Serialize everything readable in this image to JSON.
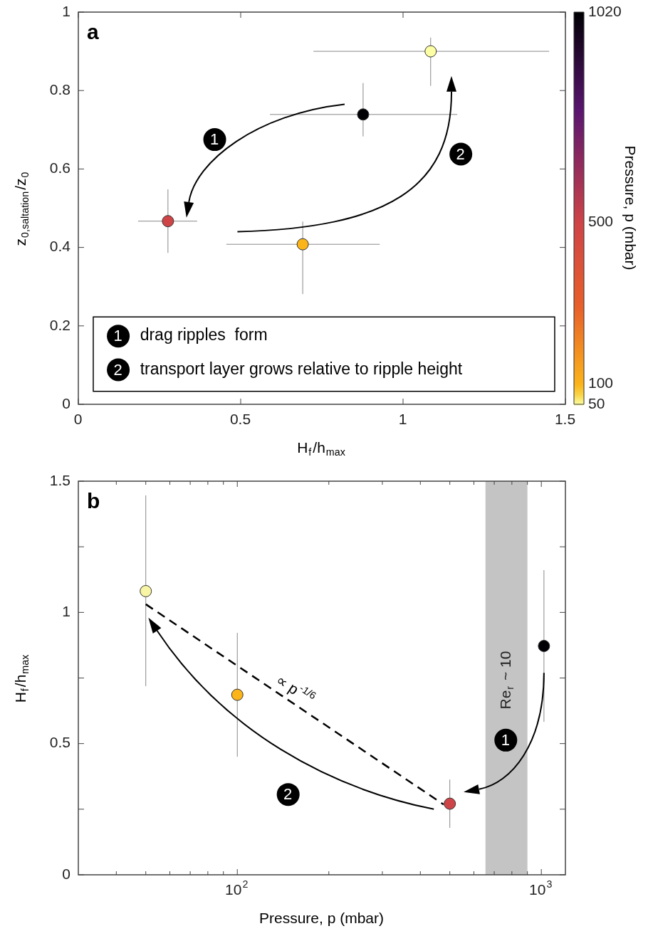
{
  "chart_data": [
    {
      "type": "scatter",
      "title": "a",
      "xlabel": "H$_{f}$/h$_{max}$",
      "ylabel": "z$_{0,saltation}$/z$_{0}$",
      "clabel": "Pressure, p (mbar)",
      "xlim": [
        0,
        1.5
      ],
      "ylim": [
        0,
        1
      ],
      "xticks": [
        0,
        0.5,
        1,
        1.5
      ],
      "yticks": [
        0,
        0.2,
        0.4,
        0.6,
        0.8,
        1
      ],
      "clim": [
        50,
        1020
      ],
      "cticks": [
        50,
        100,
        500,
        1020
      ],
      "marker": "circle",
      "series": [
        {
          "x": [
            0.276,
            0.691,
            0.877,
            1.085
          ],
          "values": [
            0.467,
            0.408,
            0.739,
            0.9
          ],
          "xerrors": [
            [
              0.184,
              0.366
            ],
            [
              0.456,
              0.928
            ],
            [
              0.59,
              1.167
            ],
            [
              0.724,
              1.45
            ]
          ],
          "errors": [
            [
              0.386,
              0.548
            ],
            [
              0.281,
              0.466
            ],
            [
              0.683,
              0.819
            ],
            [
              0.812,
              0.935
            ]
          ],
          "cvalues": [
            500,
            100,
            1020,
            50
          ]
        }
      ],
      "annotations": [
        "1",
        "2",
        "1",
        "drag ripples  form",
        "2",
        "transport layer grows relative to ripple height"
      ]
    },
    {
      "type": "scatter",
      "title": "b",
      "xlabel": "Pressure, p (mbar)",
      "ylabel": "H$_{f}$/h$_{max}$",
      "log": "x",
      "xlim": [
        30,
        1200
      ],
      "ylim": [
        0,
        1.5
      ],
      "xticks": [
        {
          "value": 40,
          "label": null
        },
        {
          "value": 50,
          "label": null
        },
        {
          "value": 60,
          "label": null
        },
        {
          "value": 70,
          "label": null
        },
        {
          "value": 80,
          "label": null
        },
        {
          "value": 90,
          "label": null
        },
        {
          "value": 100,
          "label": "10$^{2}$"
        },
        {
          "value": 200,
          "label": null
        },
        {
          "value": 300,
          "label": null
        },
        {
          "value": 400,
          "label": null
        },
        {
          "value": 500,
          "label": null
        },
        {
          "value": 600,
          "label": null
        },
        {
          "value": 700,
          "label": null
        },
        {
          "value": 800,
          "label": null
        },
        {
          "value": 900,
          "label": null
        },
        {
          "value": 1000,
          "label": "10$^{3}$"
        }
      ],
      "yticks": [
        0,
        {
          "value": 0.25,
          "label": null
        },
        0.5,
        {
          "value": 0.75,
          "label": null
        },
        1,
        {
          "value": 1.25,
          "label": null
        },
        1.5
      ],
      "marker": "circle",
      "bands": [
        {
          "axis": "x",
          "from": 655,
          "to": 900,
          "label": "Re$_{r}$ ~ 10",
          "color": "#c4c4c4"
        }
      ],
      "series": [
        {
          "x": [
            50,
            100,
            500,
            1020
          ],
          "values": [
            1.081,
            0.686,
            0.271,
            0.872
          ],
          "errors": [
            [
              0.719,
              1.446
            ],
            [
              0.45,
              0.922
            ],
            [
              0.179,
              0.363
            ],
            [
              0.583,
              1.161
            ]
          ],
          "colors": [
            "#f8f5a5",
            "#fbb41a",
            "#cf4446",
            "#000004"
          ]
        },
        {
          "type": "line",
          "name": "∝ p$^{-1/6}$",
          "x": [
            50,
            477
          ],
          "values": [
            1.031,
            0.268
          ],
          "color": "#000000",
          "line_style": "dashed",
          "marker": "none"
        }
      ],
      "annotations": [
        "1",
        "2"
      ]
    }
  ]
}
